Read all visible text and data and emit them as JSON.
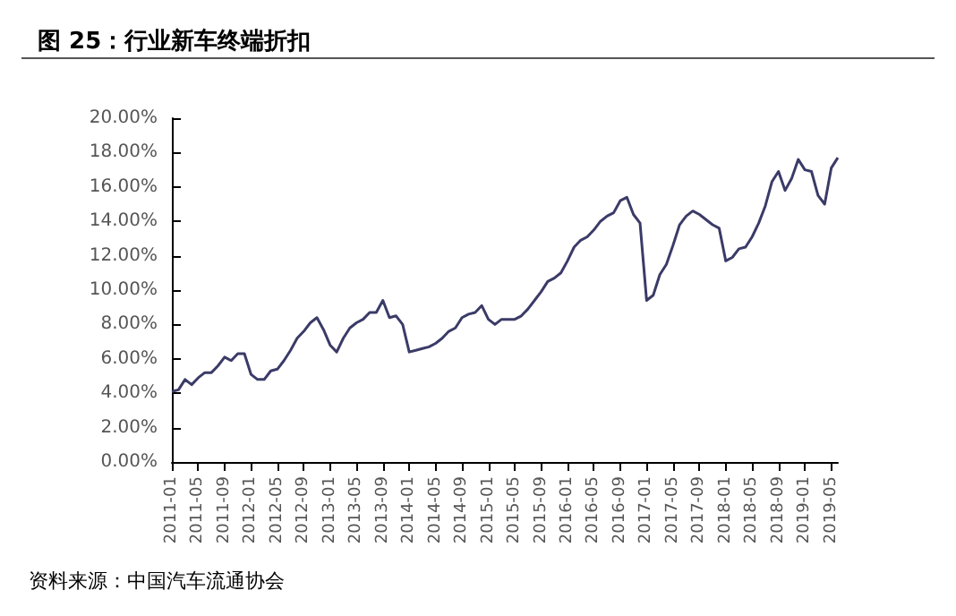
{
  "chart_data": {
    "type": "line",
    "title": "图 25：行业新车终端折扣",
    "annotations": [
      "资料来源：中国汽车流通协会"
    ],
    "categories": [
      "2011-01",
      null,
      null,
      null,
      "2011-05",
      null,
      null,
      null,
      "2011-09",
      null,
      null,
      null,
      "2012-01",
      null,
      null,
      null,
      "2012-05",
      null,
      null,
      null,
      "2012-09",
      null,
      null,
      null,
      "2013-01",
      null,
      null,
      null,
      "2013-05",
      null,
      null,
      null,
      "2013-09",
      null,
      null,
      null,
      "2014-01",
      null,
      null,
      null,
      "2014-05",
      null,
      null,
      null,
      "2014-09",
      null,
      null,
      null,
      "2015-01",
      null,
      null,
      null,
      "2015-05",
      null,
      null,
      null,
      "2015-09",
      null,
      null,
      null,
      "2016-01",
      null,
      null,
      null,
      "2016-05",
      null,
      null,
      null,
      "2016-09",
      null,
      null,
      null,
      "2017-01",
      null,
      null,
      null,
      "2017-05",
      null,
      null,
      null,
      "2017-09",
      null,
      null,
      null,
      "2018-01",
      null,
      null,
      null,
      "2018-05",
      null,
      null,
      null,
      "2018-09",
      null,
      null,
      null,
      "2019-01",
      null,
      null,
      null,
      "2019-05",
      null
    ],
    "series": [
      {
        "color": "#3b3b68",
        "values": [
          4.1,
          4.2,
          4.8,
          4.5,
          4.9,
          5.2,
          5.2,
          5.6,
          6.1,
          5.9,
          6.3,
          6.3,
          5.1,
          4.8,
          4.8,
          5.3,
          5.4,
          5.9,
          6.5,
          7.2,
          7.6,
          8.1,
          8.4,
          7.7,
          6.8,
          6.4,
          7.2,
          7.8,
          8.1,
          8.3,
          8.7,
          8.7,
          9.4,
          8.4,
          8.5,
          8.0,
          6.4,
          6.5,
          6.6,
          6.7,
          6.9,
          7.2,
          7.6,
          7.8,
          8.4,
          8.6,
          8.7,
          9.1,
          8.3,
          8.0,
          8.3,
          8.3,
          8.3,
          8.5,
          8.9,
          9.4,
          9.9,
          10.5,
          10.7,
          11.0,
          11.7,
          12.5,
          12.9,
          13.1,
          13.5,
          14.0,
          14.3,
          14.5,
          15.2,
          15.4,
          14.4,
          13.9,
          9.4,
          9.7,
          10.9,
          11.5,
          12.6,
          13.8,
          14.3,
          14.6,
          14.4,
          14.1,
          13.8,
          13.6,
          11.7,
          11.9,
          12.4,
          12.5,
          13.1,
          13.9,
          14.9,
          16.3,
          16.9,
          15.8,
          16.5,
          17.6,
          17.0,
          16.9,
          15.5,
          15.0,
          17.1,
          17.7
        ]
      }
    ],
    "ylim": [
      0,
      20
    ],
    "yticks": [
      {
        "value": 0,
        "label": "0.00%"
      },
      {
        "value": 2,
        "label": "2.00%"
      },
      {
        "value": 4,
        "label": "4.00%"
      },
      {
        "value": 6,
        "label": "6.00%"
      },
      {
        "value": 8,
        "label": "8.00%"
      },
      {
        "value": 10,
        "label": "10.00%"
      },
      {
        "value": 12,
        "label": "12.00%"
      },
      {
        "value": 14,
        "label": "14.00%"
      },
      {
        "value": 16,
        "label": "16.00%"
      },
      {
        "value": 18,
        "label": "18.00%"
      },
      {
        "value": 20,
        "label": "20.00%"
      }
    ],
    "grid": false,
    "marker": "none",
    "line_style": "solid"
  }
}
